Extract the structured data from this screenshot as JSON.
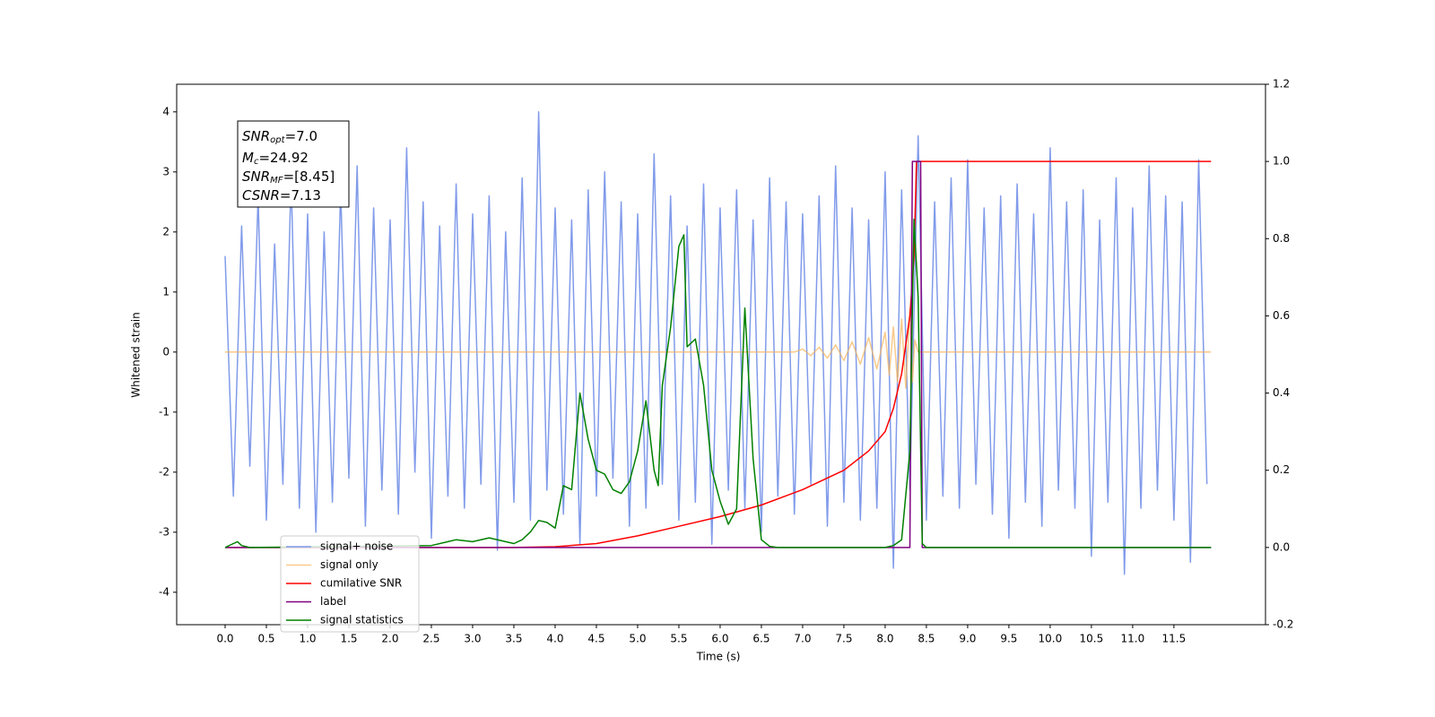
{
  "chart_data": {
    "type": "line",
    "xlabel": "Time (s)",
    "ylabel": "Whitened strain",
    "xlim": [
      -0.587,
      12.61
    ],
    "ylim": [
      -4.54,
      4.46
    ],
    "y2lim": [
      -0.2,
      1.2
    ],
    "xticks": [
      {
        "value": 0,
        "label": "0.0"
      },
      0.5,
      {
        "value": 1,
        "label": "1.0"
      },
      1.5,
      {
        "value": 2,
        "label": "2.0"
      },
      2.5,
      {
        "value": 3,
        "label": "3.0"
      },
      3.5,
      {
        "value": 4,
        "label": "4.0"
      },
      4.5,
      {
        "value": 5,
        "label": "5.0"
      },
      5.5,
      {
        "value": 6,
        "label": "6.0"
      },
      6.5,
      {
        "value": 7,
        "label": "7.0"
      },
      7.5,
      {
        "value": 8,
        "label": "8.0"
      },
      8.5,
      {
        "value": 9,
        "label": "9.0"
      },
      9.5,
      {
        "value": 10,
        "label": "10.0"
      },
      10.5,
      {
        "value": 11,
        "label": "11.0"
      },
      11.5
    ],
    "yticks": [
      -4,
      -3,
      -2,
      -1,
      0,
      1,
      2,
      3,
      4
    ],
    "y2ticks": [
      -0.2,
      {
        "value": 0,
        "label": "0.0"
      },
      0.2,
      0.4,
      0.6,
      0.8,
      {
        "value": 1,
        "label": "1.0"
      },
      1.2
    ],
    "legend": "lower left",
    "annotations": [
      {
        "name": "SNR",
        "sub": "opt",
        "text": "=7.0"
      },
      {
        "name": "M",
        "sub": "c",
        "text": "=24.92"
      },
      {
        "name": "SNR",
        "sub": "MF",
        "text": "=[8.45]"
      },
      {
        "name": "CSNR",
        "sub": "",
        "text": "=7.13"
      }
    ],
    "series": [
      {
        "name": "signal+ noise",
        "color": "#7a96e9",
        "axis": "y",
        "x": [
          0,
          0.1,
          0.2,
          0.3,
          0.4,
          0.5,
          0.6,
          0.7,
          0.8,
          0.9,
          1,
          1.1,
          1.2,
          1.3,
          1.4,
          1.5,
          1.6,
          1.7,
          1.8,
          1.9,
          2,
          2.1,
          2.2,
          2.3,
          2.4,
          2.5,
          2.6,
          2.7,
          2.8,
          2.9,
          3,
          3.1,
          3.2,
          3.3,
          3.4,
          3.5,
          3.6,
          3.7,
          3.8,
          3.9,
          4,
          4.1,
          4.2,
          4.3,
          4.4,
          4.5,
          4.6,
          4.7,
          4.8,
          4.9,
          5,
          5.1,
          5.2,
          5.3,
          5.4,
          5.5,
          5.6,
          5.7,
          5.8,
          5.9,
          6,
          6.1,
          6.2,
          6.3,
          6.4,
          6.5,
          6.6,
          6.7,
          6.8,
          6.9,
          7,
          7.1,
          7.2,
          7.3,
          7.4,
          7.5,
          7.6,
          7.7,
          7.8,
          7.9,
          8,
          8.1,
          8.2,
          8.3,
          8.4,
          8.5,
          8.6,
          8.7,
          8.8,
          8.9,
          9,
          9.1,
          9.2,
          9.3,
          9.4,
          9.5,
          9.6,
          9.7,
          9.8,
          9.9,
          10,
          10.1,
          10.2,
          10.3,
          10.4,
          10.5,
          10.6,
          10.7,
          10.8,
          10.9,
          11,
          11.1,
          11.2,
          11.3,
          11.4,
          11.5,
          11.6,
          11.7,
          11.8,
          11.9
        ],
        "values": [
          1.6,
          -2.4,
          2.1,
          -1.9,
          2.6,
          -2.8,
          1.8,
          -2.2,
          2.9,
          -2.6,
          2.3,
          -3.0,
          2.0,
          -2.5,
          2.7,
          -2.1,
          3.1,
          -2.9,
          2.4,
          -2.3,
          2.2,
          -2.7,
          3.4,
          -2.0,
          2.5,
          -3.1,
          2.1,
          -2.4,
          2.8,
          -2.6,
          2.3,
          -2.2,
          2.6,
          -3.3,
          2.0,
          -2.5,
          2.9,
          -2.8,
          4.0,
          -2.3,
          2.4,
          -2.7,
          2.2,
          -3.2,
          2.7,
          -2.4,
          3.0,
          -2.1,
          2.5,
          -2.9,
          2.3,
          -2.6,
          3.3,
          -2.2,
          2.6,
          -2.8,
          2.1,
          -2.5,
          2.8,
          -3.2,
          2.4,
          -2.3,
          2.7,
          -2.6,
          2.2,
          -3.0,
          2.9,
          -2.4,
          2.5,
          -2.7,
          2.3,
          -2.2,
          2.6,
          -2.9,
          3.1,
          -2.5,
          2.4,
          -2.8,
          2.2,
          -2.6,
          3.0,
          -3.6,
          2.7,
          -2.3,
          3.6,
          -2.8,
          2.5,
          -2.4,
          2.9,
          -2.6,
          3.2,
          -2.2,
          2.4,
          -2.7,
          2.6,
          -3.1,
          2.8,
          -2.5,
          2.3,
          -2.9,
          3.4,
          -2.3,
          2.5,
          -2.6,
          2.7,
          -3.4,
          2.2,
          -2.5,
          2.9,
          -3.7,
          2.4,
          -2.6,
          3.1,
          -2.3,
          2.6,
          -2.8,
          2.5,
          -3.5,
          3.2,
          -2.2
        ]
      },
      {
        "name": "signal only",
        "color": "#f5b35a",
        "axis": "y",
        "x": [
          0,
          6.9,
          7.0,
          7.1,
          7.2,
          7.3,
          7.4,
          7.5,
          7.6,
          7.7,
          7.8,
          7.9,
          8.0,
          8.05,
          8.1,
          8.15,
          8.2,
          8.25,
          8.3,
          8.33,
          8.36,
          8.4,
          11.95
        ],
        "values": [
          0,
          0,
          0.05,
          -0.06,
          0.08,
          -0.1,
          0.12,
          -0.14,
          0.17,
          -0.2,
          0.24,
          -0.28,
          0.33,
          -0.38,
          0.42,
          -0.5,
          0.55,
          -0.6,
          0.7,
          -0.5,
          0.2,
          0,
          0
        ]
      },
      {
        "name": "cumilative SNR",
        "color": "#ff0000",
        "axis": "y2",
        "x": [
          0,
          3.5,
          4,
          4.5,
          5,
          5.5,
          6,
          6.5,
          7,
          7.5,
          7.8,
          8,
          8.1,
          8.2,
          8.3,
          8.35,
          8.38,
          11.95
        ],
        "values": [
          0,
          0,
          0.002,
          0.01,
          0.03,
          0.055,
          0.08,
          0.11,
          0.15,
          0.2,
          0.25,
          0.3,
          0.36,
          0.45,
          0.6,
          0.75,
          1.0,
          1.0
        ]
      },
      {
        "name": "label",
        "color": "#800080",
        "axis": "y2",
        "x": [
          0,
          8.3,
          8.33,
          8.43,
          8.45,
          11.95
        ],
        "values": [
          0,
          0,
          1,
          1,
          0,
          0
        ]
      },
      {
        "name": "signal statistics",
        "color": "#008000",
        "axis": "y2",
        "x": [
          0,
          0.1,
          0.15,
          0.2,
          0.3,
          2.5,
          2.7,
          2.8,
          3.0,
          3.2,
          3.5,
          3.6,
          3.7,
          3.8,
          3.9,
          4.0,
          4.1,
          4.2,
          4.3,
          4.4,
          4.5,
          4.6,
          4.7,
          4.8,
          4.9,
          5.0,
          5.1,
          5.2,
          5.25,
          5.3,
          5.4,
          5.5,
          5.56,
          5.6,
          5.7,
          5.8,
          5.9,
          6.0,
          6.1,
          6.2,
          6.3,
          6.4,
          6.5,
          6.6,
          6.7,
          8.0,
          8.1,
          8.2,
          8.3,
          8.35,
          8.4,
          8.45,
          8.5,
          11.95
        ],
        "values": [
          0,
          0.01,
          0.015,
          0.005,
          0,
          0.005,
          0.015,
          0.02,
          0.015,
          0.025,
          0.01,
          0.02,
          0.04,
          0.07,
          0.065,
          0.05,
          0.16,
          0.15,
          0.4,
          0.28,
          0.2,
          0.19,
          0.15,
          0.14,
          0.17,
          0.25,
          0.38,
          0.2,
          0.16,
          0.42,
          0.57,
          0.78,
          0.81,
          0.52,
          0.54,
          0.42,
          0.2,
          0.12,
          0.06,
          0.1,
          0.62,
          0.23,
          0.02,
          0.003,
          0,
          0,
          0.005,
          0.02,
          0.25,
          0.85,
          0.65,
          0.01,
          0,
          0
        ]
      }
    ]
  }
}
